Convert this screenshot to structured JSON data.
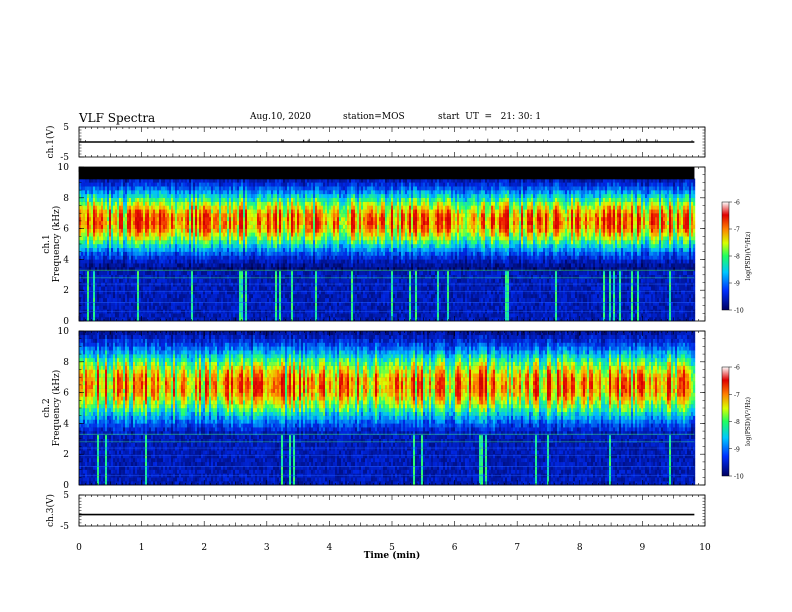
{
  "header": {
    "title": "VLF Spectra",
    "date": "Aug.10, 2020",
    "station": "station=MOS",
    "start": "start  UT  =   21: 30: 1"
  },
  "chart_data": [
    {
      "type": "line",
      "id": "ch1-voltage",
      "ylabel": "ch.1(V)",
      "ylim": [
        -5,
        5
      ],
      "yticks": [
        "5",
        "-5"
      ],
      "xlim": [
        0,
        10
      ],
      "series": [
        {
          "x": [
            0,
            9.83
          ],
          "values": [
            0,
            0
          ]
        }
      ]
    },
    {
      "type": "heatmap",
      "id": "ch1-spectrogram",
      "ylabel": "ch.1\nFrequency (kHz)",
      "ylim": [
        0,
        10
      ],
      "yticks": [
        "0",
        "2",
        "4",
        "6",
        "8",
        "10"
      ],
      "xlim": [
        0,
        10
      ],
      "data_xmax": 9.83,
      "band_kHz": [
        4.0,
        9.0
      ],
      "colorbar": {
        "range": [
          -10,
          -6
        ],
        "ticks": [
          "-6",
          "-7",
          "-8",
          "-9",
          "-10"
        ],
        "label": "log(PSD)(V²/Hz)"
      }
    },
    {
      "type": "heatmap",
      "id": "ch2-spectrogram",
      "ylabel": "ch.2\nFrequency (kHz)",
      "ylim": [
        0,
        10
      ],
      "yticks": [
        "0",
        "2",
        "4",
        "6",
        "8",
        "10"
      ],
      "xlim": [
        0,
        10
      ],
      "data_xmax": 9.83,
      "band_kHz": [
        3.5,
        9.5
      ],
      "colorbar": {
        "range": [
          -10,
          -6
        ],
        "ticks": [
          "-6",
          "-7",
          "-8",
          "-9",
          "-10"
        ],
        "label": "log(PSD)(V²/Hz)"
      }
    },
    {
      "type": "line",
      "id": "ch3-voltage",
      "ylabel": "ch.3(V)",
      "ylim": [
        -5,
        5
      ],
      "yticks": [
        "5",
        "-5"
      ],
      "xlim": [
        0,
        10
      ],
      "xlabel": "Time (min)",
      "xticks": [
        "0",
        "1",
        "2",
        "3",
        "4",
        "5",
        "6",
        "7",
        "8",
        "9",
        "10"
      ],
      "series": [
        {
          "x": [
            0,
            9.83
          ],
          "values": [
            -1.3,
            -1.3
          ]
        }
      ]
    }
  ]
}
